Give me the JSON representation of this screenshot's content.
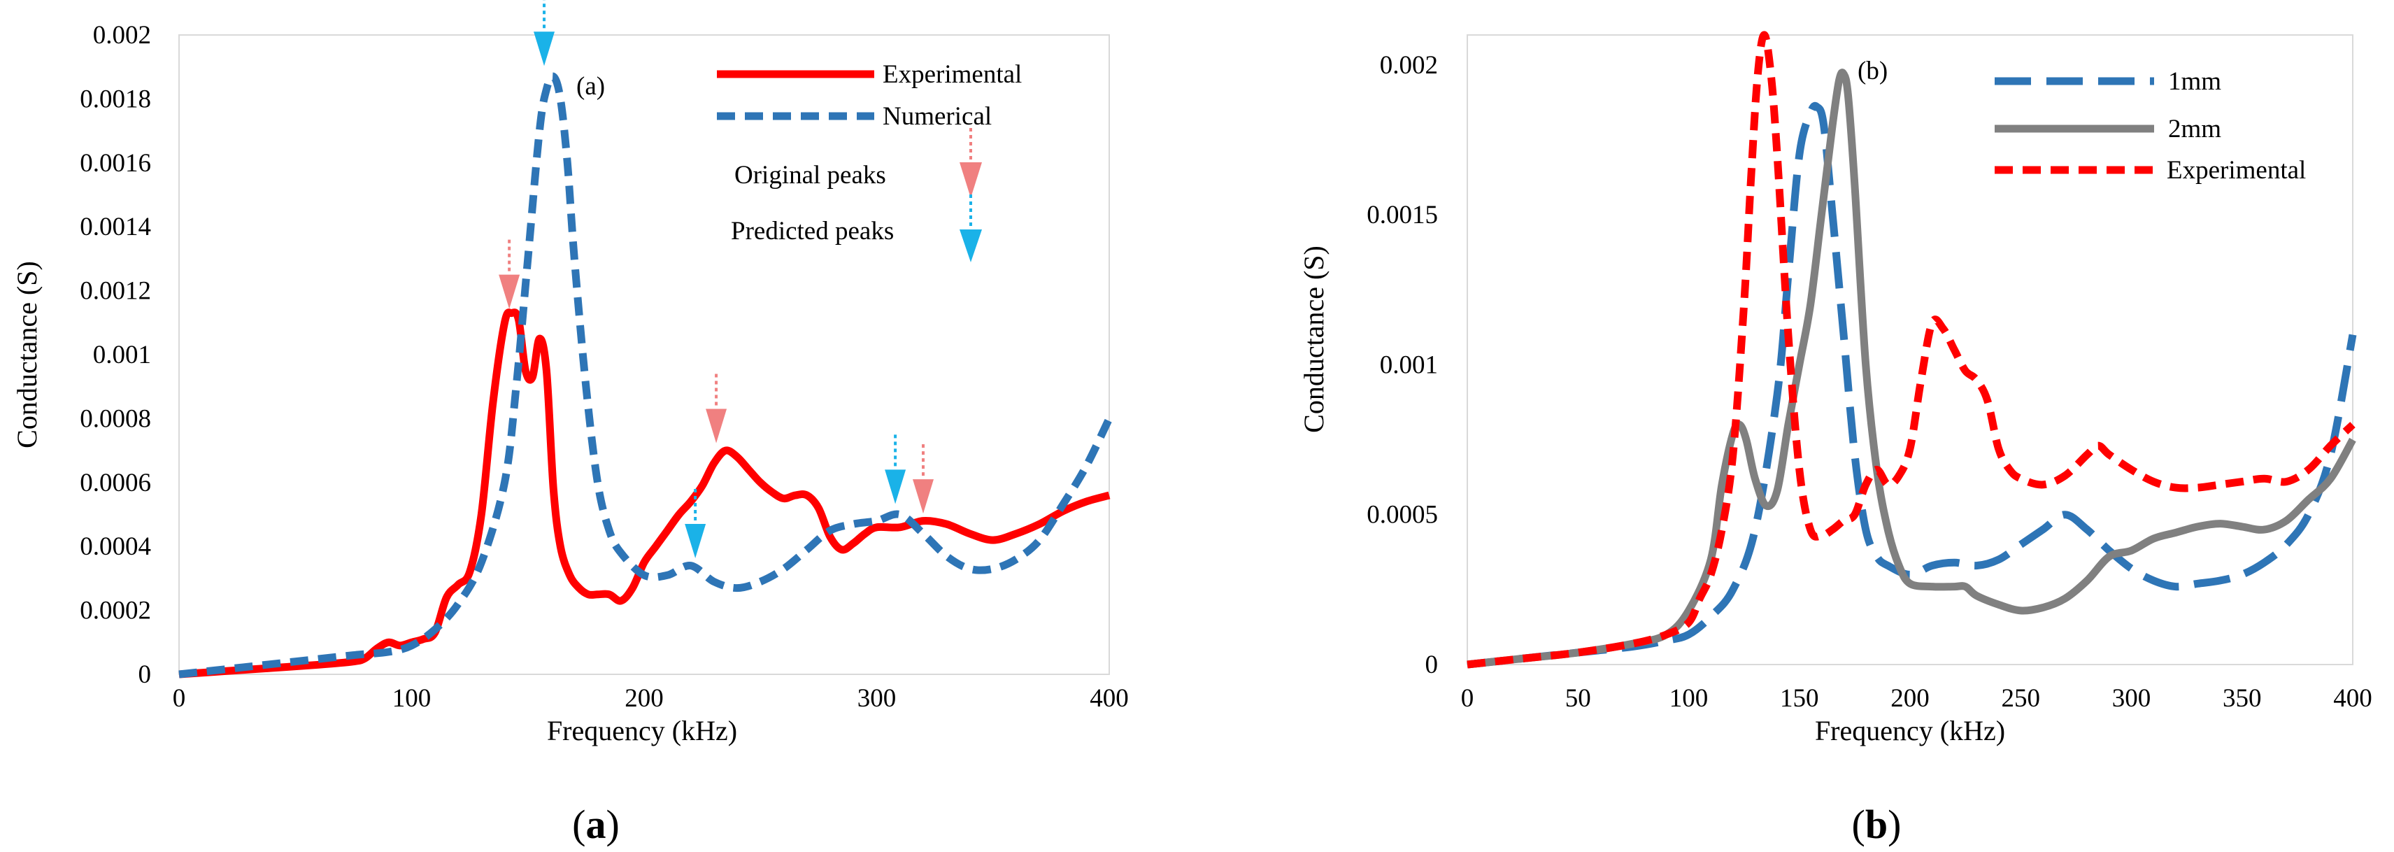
{
  "chart_data": [
    {
      "id": "a",
      "type": "line",
      "panel_label": "(a)",
      "caption": {
        "open": "(",
        "letter": "a",
        "close": ")"
      },
      "xlabel": "Frequency (kHz)",
      "ylabel": "Conductance (S)",
      "xlim": [
        0,
        400
      ],
      "ylim": [
        0,
        0.002
      ],
      "xticks": [
        0,
        100,
        200,
        300,
        400
      ],
      "xtick_labels": [
        "0",
        "100",
        "200",
        "300",
        "400"
      ],
      "yticks": [
        0,
        0.0002,
        0.0004,
        0.0006,
        0.0008,
        0.001,
        0.0012,
        0.0014,
        0.0016,
        0.0018,
        0.002
      ],
      "ytick_labels": [
        "0",
        "0.0002",
        "0.0004",
        "0.0006",
        "0.0008",
        "0.001",
        "0.0012",
        "0.0014",
        "0.0016",
        "0.0018",
        "0.002"
      ],
      "legend_position": "top-right",
      "series": [
        {
          "name": "Experimental",
          "color": "#ff0000",
          "style": "solid",
          "x": [
            0,
            20,
            40,
            60,
            75,
            80,
            85,
            90,
            95,
            100,
            105,
            110,
            115,
            120,
            125,
            130,
            135,
            140,
            143,
            146,
            149,
            152,
            155,
            158,
            161,
            164,
            168,
            172,
            176,
            180,
            185,
            190,
            195,
            200,
            205,
            210,
            215,
            220,
            225,
            230,
            235,
            240,
            245,
            250,
            255,
            260,
            265,
            270,
            275,
            280,
            285,
            290,
            295,
            300,
            310,
            320,
            330,
            340,
            350,
            360,
            370,
            380,
            390,
            400
          ],
          "y": [
            0,
            1e-05,
            2e-05,
            3e-05,
            4e-05,
            5e-05,
            8e-05,
            0.0001,
            9e-05,
            0.0001,
            0.00011,
            0.00013,
            0.00024,
            0.00028,
            0.00032,
            0.0005,
            0.00085,
            0.0011,
            0.00113,
            0.00111,
            0.00095,
            0.00093,
            0.00105,
            0.00095,
            0.00058,
            0.0004,
            0.00031,
            0.00027,
            0.00025,
            0.00025,
            0.00025,
            0.00023,
            0.00027,
            0.00035,
            0.0004,
            0.00045,
            0.0005,
            0.00054,
            0.00059,
            0.00066,
            0.0007,
            0.00068,
            0.00064,
            0.0006,
            0.00057,
            0.00055,
            0.00056,
            0.00056,
            0.00052,
            0.00043,
            0.00039,
            0.00041,
            0.00044,
            0.00046,
            0.00046,
            0.00048,
            0.00047,
            0.00044,
            0.00042,
            0.00044,
            0.00047,
            0.00051,
            0.00054,
            0.00056
          ]
        },
        {
          "name": "Numerical",
          "color": "#2e75b6",
          "style": "dashed",
          "x": [
            0,
            25,
            50,
            75,
            90,
            100,
            110,
            120,
            130,
            140,
            145,
            150,
            155,
            158,
            161,
            164,
            167,
            170,
            175,
            180,
            185,
            190,
            200,
            210,
            220,
            230,
            240,
            250,
            260,
            270,
            280,
            290,
            300,
            310,
            320,
            330,
            340,
            350,
            360,
            370,
            380,
            390,
            400
          ],
          "y": [
            0,
            2e-05,
            4e-05,
            6e-05,
            7e-05,
            9e-05,
            0.00014,
            0.00022,
            0.00035,
            0.0006,
            0.0009,
            0.0013,
            0.0017,
            0.00183,
            0.00187,
            0.0018,
            0.0016,
            0.0013,
            0.0009,
            0.0006,
            0.00045,
            0.00038,
            0.00031,
            0.00031,
            0.00034,
            0.00029,
            0.00027,
            0.00029,
            0.00033,
            0.00039,
            0.00045,
            0.00047,
            0.00048,
            0.0005,
            0.00044,
            0.00037,
            0.00033,
            0.00033,
            0.00036,
            0.00042,
            0.00053,
            0.00065,
            0.0008
          ]
        }
      ],
      "annotations": [
        {
          "kind": "arrow",
          "color": "#f08080",
          "x": 142,
          "y": 0.00113,
          "group": "original"
        },
        {
          "kind": "arrow",
          "color": "#f08080",
          "x": 231,
          "y": 0.00071,
          "group": "original"
        },
        {
          "kind": "arrow",
          "color": "#f08080",
          "x": 320,
          "y": 0.00049,
          "group": "original"
        },
        {
          "kind": "arrow",
          "color": "#1ab2e8",
          "x": 157,
          "y": 0.00189,
          "group": "predicted"
        },
        {
          "kind": "arrow",
          "color": "#1ab2e8",
          "x": 222,
          "y": 0.00035,
          "group": "predicted"
        },
        {
          "kind": "arrow",
          "color": "#1ab2e8",
          "x": 308,
          "y": 0.00052,
          "group": "predicted"
        }
      ],
      "peak_legend": [
        {
          "label": "Original peaks",
          "color": "#f08080"
        },
        {
          "label": "Predicted peaks",
          "color": "#1ab2e8"
        }
      ]
    },
    {
      "id": "b",
      "type": "line",
      "panel_label": "(b)",
      "caption": {
        "open": "(",
        "letter": "b",
        "close": ")"
      },
      "xlabel": "Frequency (kHz)",
      "ylabel": "Conductance (S)",
      "xlim": [
        0,
        400
      ],
      "ylim": [
        0,
        0.0021
      ],
      "xticks": [
        0,
        50,
        100,
        150,
        200,
        250,
        300,
        350,
        400
      ],
      "xtick_labels": [
        "0",
        "50",
        "100",
        "150",
        "200",
        "250",
        "300",
        "350",
        "400"
      ],
      "yticks": [
        0,
        0.0005,
        0.001,
        0.0015,
        0.002
      ],
      "ytick_labels": [
        "0",
        "0.0005",
        "0.001",
        "0.0015",
        "0.002"
      ],
      "legend_position": "top-right",
      "series": [
        {
          "name": "1mm",
          "color": "#2e75b6",
          "style": "longdash",
          "x": [
            0,
            25,
            50,
            75,
            90,
            100,
            110,
            120,
            130,
            140,
            145,
            150,
            155,
            158,
            161,
            165,
            170,
            175,
            180,
            185,
            190,
            200,
            210,
            220,
            230,
            240,
            250,
            260,
            270,
            280,
            290,
            300,
            310,
            320,
            330,
            340,
            350,
            360,
            370,
            380,
            390,
            400
          ],
          "y": [
            0,
            2e-05,
            4e-05,
            6e-05,
            8e-05,
            0.0001,
            0.00016,
            0.00025,
            0.00045,
            0.0009,
            0.0013,
            0.0017,
            0.00184,
            0.00186,
            0.0018,
            0.0015,
            0.0011,
            0.0007,
            0.00045,
            0.00036,
            0.00033,
            0.0003,
            0.00033,
            0.00034,
            0.00033,
            0.00035,
            0.0004,
            0.00045,
            0.0005,
            0.00045,
            0.00038,
            0.00032,
            0.00028,
            0.00026,
            0.00027,
            0.00028,
            0.0003,
            0.00034,
            0.0004,
            0.0005,
            0.0007,
            0.0011
          ]
        },
        {
          "name": "2mm",
          "color": "#808080",
          "style": "solid",
          "x": [
            0,
            25,
            50,
            75,
            90,
            100,
            110,
            115,
            120,
            123,
            126,
            130,
            135,
            140,
            145,
            150,
            155,
            160,
            165,
            168,
            170,
            172,
            175,
            180,
            185,
            190,
            195,
            200,
            210,
            220,
            225,
            230,
            240,
            250,
            260,
            270,
            280,
            290,
            300,
            310,
            320,
            330,
            340,
            350,
            360,
            370,
            380,
            390,
            400
          ],
          "y": [
            0,
            2e-05,
            4e-05,
            7e-05,
            0.0001,
            0.00018,
            0.00035,
            0.0006,
            0.00077,
            0.0008,
            0.00075,
            0.00062,
            0.00053,
            0.00058,
            0.0008,
            0.001,
            0.0012,
            0.0015,
            0.0018,
            0.00195,
            0.00197,
            0.0019,
            0.0016,
            0.001,
            0.00065,
            0.00045,
            0.00033,
            0.00027,
            0.00026,
            0.00026,
            0.00026,
            0.00023,
            0.0002,
            0.00018,
            0.00019,
            0.00022,
            0.00028,
            0.00036,
            0.00038,
            0.00042,
            0.00044,
            0.00046,
            0.00047,
            0.00046,
            0.00045,
            0.00048,
            0.00055,
            0.00062,
            0.00075
          ]
        },
        {
          "name": "Experimental",
          "color": "#ff0000",
          "style": "dashed",
          "x": [
            0,
            25,
            50,
            75,
            90,
            100,
            105,
            110,
            115,
            120,
            125,
            128,
            131,
            134,
            137,
            140,
            145,
            150,
            155,
            160,
            165,
            170,
            175,
            180,
            185,
            190,
            195,
            200,
            205,
            210,
            215,
            220,
            225,
            230,
            235,
            240,
            245,
            250,
            260,
            270,
            280,
            285,
            290,
            300,
            310,
            320,
            330,
            340,
            350,
            360,
            370,
            380,
            390,
            400
          ],
          "y": [
            0,
            2e-05,
            4e-05,
            7e-05,
            0.0001,
            0.00014,
            0.00022,
            0.0003,
            0.00045,
            0.0007,
            0.0012,
            0.0016,
            0.00195,
            0.0021,
            0.00198,
            0.0017,
            0.0011,
            0.00065,
            0.00045,
            0.00043,
            0.00045,
            0.00048,
            0.0005,
            0.0006,
            0.00065,
            0.0006,
            0.00063,
            0.00072,
            0.00095,
            0.00114,
            0.00112,
            0.00105,
            0.00098,
            0.00095,
            0.00088,
            0.00072,
            0.00065,
            0.00062,
            0.0006,
            0.00063,
            0.0007,
            0.00073,
            0.0007,
            0.00065,
            0.00061,
            0.00059,
            0.00059,
            0.0006,
            0.00061,
            0.00062,
            0.00061,
            0.00065,
            0.00073,
            0.0008
          ]
        }
      ]
    }
  ]
}
